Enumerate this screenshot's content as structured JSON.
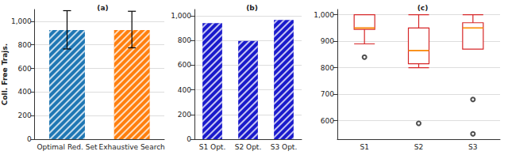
{
  "chart_data": [
    {
      "type": "bar",
      "title": "(a)",
      "y_label": "Coll. Free Trajs.",
      "categories": [
        "Optimal Red. Set",
        "Exhaustive Search"
      ],
      "values": [
        925,
        925
      ],
      "colors": [
        "#1f77b4",
        "#ff7f0e"
      ],
      "error_range": [
        [
          765,
          1090
        ],
        [
          775,
          1085
        ]
      ],
      "ylim": [
        0,
        1100
      ],
      "yticks": [
        0,
        200,
        400,
        600,
        800,
        1000
      ],
      "grid": true
    },
    {
      "type": "bar",
      "title": "(b)",
      "categories": [
        "S1 Opt.",
        "S2 Opt.",
        "S3 Opt."
      ],
      "values": [
        940,
        795,
        965
      ],
      "color": "#1a1acc",
      "ylim": [
        0,
        1050
      ],
      "yticks": [
        0,
        200,
        400,
        600,
        800,
        1000
      ],
      "grid": true
    },
    {
      "type": "boxplot",
      "title": "(c)",
      "categories": [
        "S1",
        "S2",
        "S3"
      ],
      "boxes": [
        {
          "min": 890,
          "q1": 945,
          "median": 950,
          "q3": 1000,
          "max": 1000
        },
        {
          "min": 800,
          "q1": 815,
          "median": 865,
          "q3": 950,
          "max": 1000
        },
        {
          "min": 870,
          "q1": 870,
          "median": 950,
          "q3": 970,
          "max": 1000
        }
      ],
      "outliers": [
        [
          840
        ],
        [
          590
        ],
        [
          680,
          550
        ]
      ],
      "color": "#d62728",
      "ylim": [
        530,
        1020
      ],
      "yticks": [
        600,
        700,
        800,
        900,
        1000
      ],
      "grid": true
    }
  ]
}
